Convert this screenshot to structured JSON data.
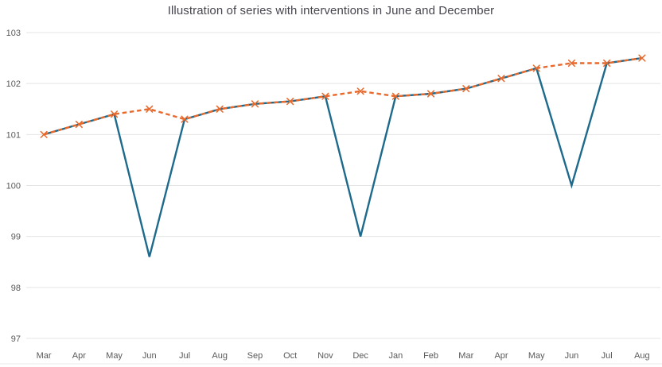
{
  "chart_data": {
    "type": "line",
    "title": "Illustration of series with interventions in June and December",
    "categories": [
      "Mar",
      "Apr",
      "May",
      "Jun",
      "Jul",
      "Aug",
      "Sep",
      "Oct",
      "Nov",
      "Dec",
      "Jan",
      "Feb",
      "Mar",
      "Apr",
      "May",
      "Jun",
      "Jul",
      "Aug"
    ],
    "series": [
      {
        "id": "solid-series",
        "style": "solid",
        "marker": "none",
        "color": "#1e6a8c",
        "values": [
          101.0,
          101.2,
          101.4,
          98.6,
          101.3,
          101.5,
          101.6,
          101.65,
          101.75,
          99.0,
          101.75,
          101.8,
          101.9,
          102.1,
          102.3,
          100.0,
          102.4,
          102.5
        ]
      },
      {
        "id": "dashed-series",
        "style": "dashed",
        "marker": "x",
        "color": "#e8692c",
        "values": [
          101.0,
          101.2,
          101.4,
          101.5,
          101.3,
          101.5,
          101.6,
          101.65,
          101.75,
          101.85,
          101.75,
          101.8,
          101.9,
          102.1,
          102.3,
          102.4,
          102.4,
          102.5
        ]
      }
    ],
    "ylim": [
      97,
      103
    ],
    "yticks": [
      97,
      98,
      99,
      100,
      101,
      102,
      103
    ],
    "xlabel": "",
    "ylabel": "",
    "grid": "horizontal",
    "legend": "none"
  },
  "colors": {
    "gridline": "#e4e4e4",
    "bottom_border": "#e9e9e9",
    "tick_label": "#595959",
    "title": "#45464e"
  }
}
